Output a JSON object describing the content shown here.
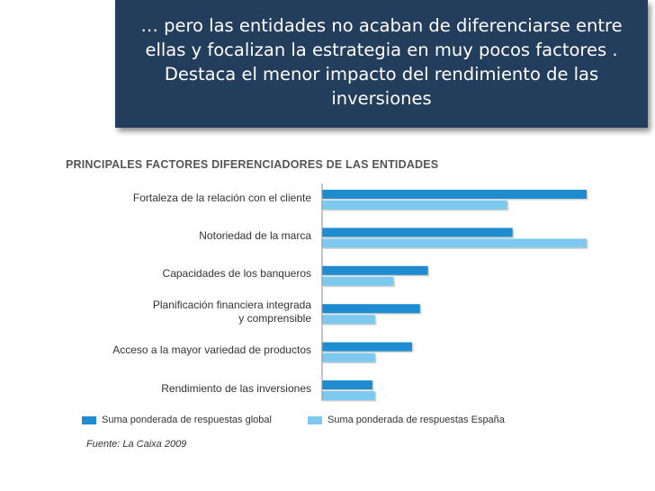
{
  "slide": {
    "banner_text": "… pero las entidades no acaban de diferenciarse entre ellas y focalizan la estrategia en muy pocos factores . Destaca el menor impacto del rendimiento de las inversiones",
    "source": "Fuente:  La Caixa 2009"
  },
  "chart_data": {
    "type": "bar",
    "orientation": "horizontal",
    "title": "PRINCIPALES FACTORES DIFERENCIADORES DE LAS ENTIDADES",
    "categories": [
      "Fortaleza de la relación con el cliente",
      "Notoriedad de la marca",
      "Capacidades de los banqueros",
      "Planificación financiera integrada y comprensible",
      "Acceso a la mayor variedad de productos",
      "Rendimiento de las inversiones"
    ],
    "category_lines": [
      [
        "Fortaleza de la relación con el cliente"
      ],
      [
        "Notoriedad de la marca"
      ],
      [
        "Capacidades de los banqueros"
      ],
      [
        "Planificación financiera integrada",
        "y comprensible"
      ],
      [
        "Acceso a la mayor variedad de productos"
      ],
      [
        "Rendimiento de las inversiones"
      ]
    ],
    "series": [
      {
        "name": "Suma ponderada de respuestas global",
        "color": "#1f8ccf",
        "values": [
          100,
          72,
          40,
          37,
          34,
          19
        ]
      },
      {
        "name": "Suma ponderada de respuestas España",
        "color": "#7cc8ee",
        "values": [
          70,
          100,
          27,
          20,
          20,
          20
        ]
      }
    ],
    "xlim": [
      0,
      100
    ],
    "xlabel": "",
    "ylabel": "",
    "grid": false,
    "legend": "bottom"
  }
}
